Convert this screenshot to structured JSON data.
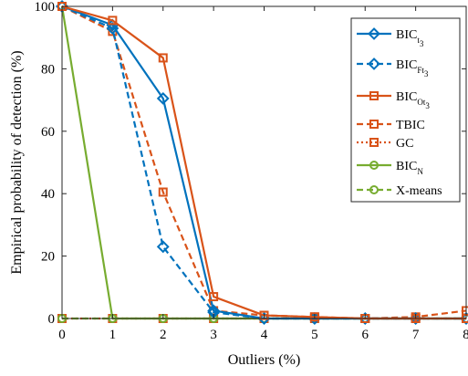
{
  "chart_data": {
    "type": "line",
    "xlabel": "Outliers (%)",
    "ylabel": "Empirical probability of detection (%)",
    "xlim": [
      0,
      8
    ],
    "ylim": [
      0,
      100
    ],
    "xticks": [
      0,
      1,
      2,
      3,
      4,
      5,
      6,
      7,
      8
    ],
    "yticks": [
      0,
      20,
      40,
      60,
      80,
      100
    ],
    "grid": false,
    "legend_position": "top-right",
    "x": [
      0,
      1,
      2,
      3,
      4,
      5,
      6,
      7,
      8
    ],
    "series": [
      {
        "name": "BIC_t3",
        "legend_main": "BIC",
        "legend_sub": "t",
        "legend_subsub": "3",
        "color": "#0072BD",
        "dash": "solid",
        "marker": "diamond",
        "values": [
          100,
          94,
          70.5,
          2.5,
          0,
          0,
          0,
          0,
          0
        ]
      },
      {
        "name": "BIC_Ft3",
        "legend_main": "BIC",
        "legend_sub": "Ft",
        "legend_subsub": "3",
        "color": "#0072BD",
        "dash": "dashed",
        "marker": "diamond",
        "values": [
          100,
          93,
          23,
          2,
          0,
          0,
          0,
          0,
          0
        ]
      },
      {
        "name": "BIC_Ot3",
        "legend_main": "BIC",
        "legend_sub": "Ot",
        "legend_subsub": "3",
        "color": "#D95319",
        "dash": "solid",
        "marker": "square",
        "values": [
          100,
          95.5,
          83.5,
          7,
          1,
          0.5,
          0,
          0,
          0
        ]
      },
      {
        "name": "TBIC",
        "legend_main": "TBIC",
        "legend_sub": "",
        "legend_subsub": "",
        "color": "#D95319",
        "dash": "dashed",
        "marker": "square",
        "values": [
          100,
          92,
          40.5,
          2.5,
          1,
          0.5,
          0,
          0.5,
          2.5
        ]
      },
      {
        "name": "GC",
        "legend_main": "GC",
        "legend_sub": "",
        "legend_subsub": "",
        "color": "#D95319",
        "dash": "dotted",
        "marker": "square",
        "values": [
          0,
          0,
          0,
          0,
          0,
          0,
          0,
          0,
          0
        ]
      },
      {
        "name": "BIC_N",
        "legend_main": "BIC",
        "legend_sub": "N",
        "legend_subsub": "",
        "color": "#77AC30",
        "dash": "solid",
        "marker": "circle",
        "values": [
          100,
          0,
          0,
          0,
          0,
          0,
          0,
          0,
          0
        ]
      },
      {
        "name": "X-means",
        "legend_main": "X-means",
        "legend_sub": "",
        "legend_subsub": "",
        "color": "#77AC30",
        "dash": "dashed",
        "marker": "circle",
        "values": [
          0,
          0,
          0,
          0,
          0,
          0,
          0,
          0,
          0
        ]
      }
    ]
  }
}
